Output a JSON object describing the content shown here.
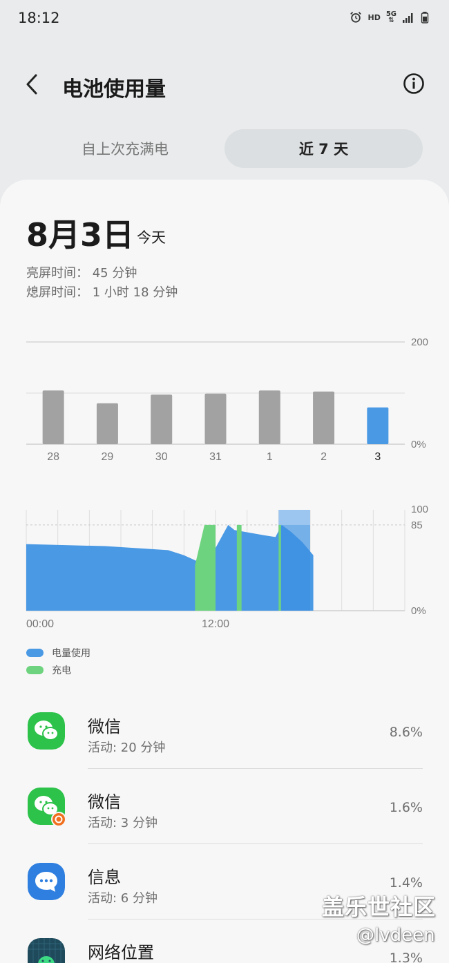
{
  "status_bar": {
    "time": "18:12",
    "hd": "HD",
    "network": "5G",
    "icons": [
      "alarm-icon",
      "data-arrows-icon",
      "signal-icon",
      "battery-icon"
    ]
  },
  "header": {
    "title": "电池使用量",
    "back_icon": "chevron-left-icon",
    "info_icon": "info-icon"
  },
  "tabs": [
    {
      "label": "自上次充满电",
      "selected": false
    },
    {
      "label": "近 7 天",
      "selected": true
    }
  ],
  "summary": {
    "date": "8月3日",
    "day_label": "今天",
    "screen_on": "亮屏时间：  45 分钟",
    "screen_off": "熄屏时间：  1 小时 18 分钟"
  },
  "chart_data": [
    {
      "type": "bar",
      "categories": [
        "28",
        "29",
        "30",
        "31",
        "1",
        "2",
        "3"
      ],
      "values": [
        105,
        80,
        97,
        99,
        105,
        103,
        72
      ],
      "ylim": [
        0,
        200
      ],
      "y_tick_labels": [
        "200",
        "0%"
      ],
      "highlighted_category": "3",
      "colors": {
        "default": "#a2a2a2",
        "highlight": "#4a99e4"
      }
    },
    {
      "type": "area",
      "x_tick_labels": [
        "00:00",
        "12:00"
      ],
      "y_tick_labels": [
        "100",
        "85",
        "0%"
      ],
      "ylim": [
        0,
        100
      ],
      "x_unit": "hours",
      "xlim": [
        0,
        24
      ],
      "series": [
        {
          "name": "电量使用",
          "color": "#4a99e4",
          "points": [
            [
              0,
              66
            ],
            [
              5,
              64
            ],
            [
              9,
              60
            ],
            [
              10,
              55
            ],
            [
              11.4,
              45
            ],
            [
              12.8,
              85
            ],
            [
              13.2,
              80
            ],
            [
              15,
              75
            ],
            [
              15.8,
              73
            ],
            [
              16.2,
              85
            ],
            [
              16.8,
              78
            ],
            [
              17.5,
              68
            ],
            [
              18.2,
              55
            ]
          ]
        },
        {
          "name": "充电",
          "color": "#6ed37f",
          "segments": [
            [
              10.7,
              11.3
            ],
            [
              11.3,
              12.0
            ],
            [
              13.35,
              13.65
            ],
            [
              16.0,
              16.15
            ]
          ]
        }
      ],
      "highlight_window_hours": [
        16.0,
        18.0
      ],
      "reference_line": 85
    }
  ],
  "legend": [
    {
      "label": "电量使用",
      "color": "#4a99e4"
    },
    {
      "label": "充电",
      "color": "#6ed37f"
    }
  ],
  "apps": [
    {
      "name": "微信",
      "activity": "活动: 20 分钟",
      "percent": "8.6%",
      "icon": "wechat-icon",
      "icon_color": "#2dc24a"
    },
    {
      "name": "微信",
      "activity": "活动: 3 分钟",
      "percent": "1.6%",
      "icon": "wechat-clone-icon",
      "icon_color": "#2dc24a"
    },
    {
      "name": "信息",
      "activity": "活动: 6 分钟",
      "percent": "1.4%",
      "icon": "messages-icon",
      "icon_color": "#2f7fe0"
    },
    {
      "name": "网络位置",
      "activity": "",
      "percent": "1.3%",
      "icon": "android-icon",
      "icon_color": "#1f4a5c"
    }
  ],
  "watermark": {
    "line1": "盖乐世社区",
    "line2": "@lvdeen"
  }
}
